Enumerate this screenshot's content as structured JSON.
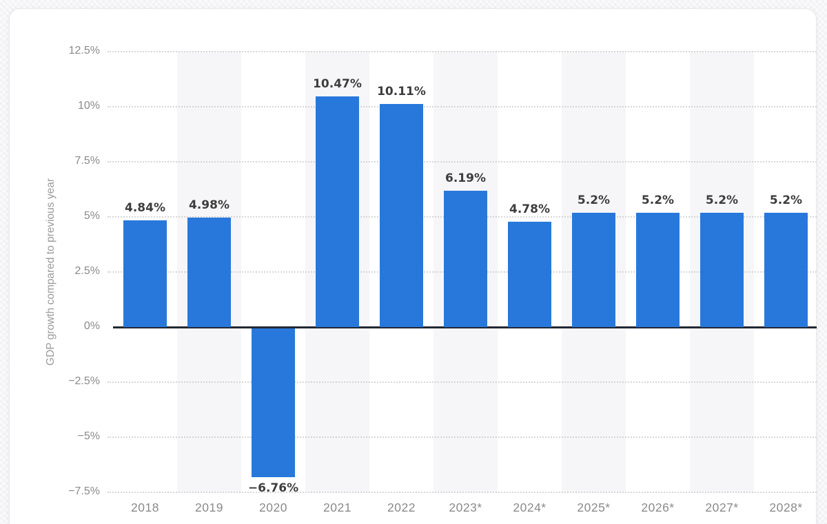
{
  "page": {
    "background_color": "#fafafb",
    "card_color": "#ffffff"
  },
  "chart_data": {
    "type": "bar",
    "title": "",
    "xlabel": "",
    "ylabel": "GDP growth compared to previous year",
    "categories": [
      "2018",
      "2019",
      "2020",
      "2021",
      "2022",
      "2023*",
      "2024*",
      "2025*",
      "2026*",
      "2027*",
      "2028*"
    ],
    "values": [
      4.84,
      4.98,
      -6.76,
      10.47,
      10.11,
      6.19,
      4.78,
      5.2,
      5.2,
      5.2,
      5.2
    ],
    "data_labels": [
      "4.84%",
      "4.98%",
      "−6.76%",
      "10.47%",
      "10.11%",
      "6.19%",
      "4.78%",
      "5.2%",
      "5.2%",
      "5.2%",
      "5.2%"
    ],
    "y_ticks": [
      {
        "value": 12.5,
        "label": "12.5%"
      },
      {
        "value": 10,
        "label": "10%"
      },
      {
        "value": 7.5,
        "label": "7.5%"
      },
      {
        "value": 5,
        "label": "5%"
      },
      {
        "value": 2.5,
        "label": "2.5%"
      },
      {
        "value": 0,
        "label": "0%"
      },
      {
        "value": -2.5,
        "label": "−2.5%"
      },
      {
        "value": -5,
        "label": "−5%"
      },
      {
        "value": -7.5,
        "label": "−7.5%"
      }
    ],
    "ylim": [
      -7.5,
      12.5
    ],
    "grid": "horizontal dotted, alternating vertical category stripes",
    "legend": "none",
    "colors": {
      "bar": "#2878db",
      "stripe": "#f6f6f8",
      "gridline": "#cfcfcf",
      "zero_line": "#222733",
      "axis_tick_text": "#8a8a8a",
      "data_label_text": "#3d3d3d",
      "y_title_text": "#9a9a9a"
    }
  }
}
